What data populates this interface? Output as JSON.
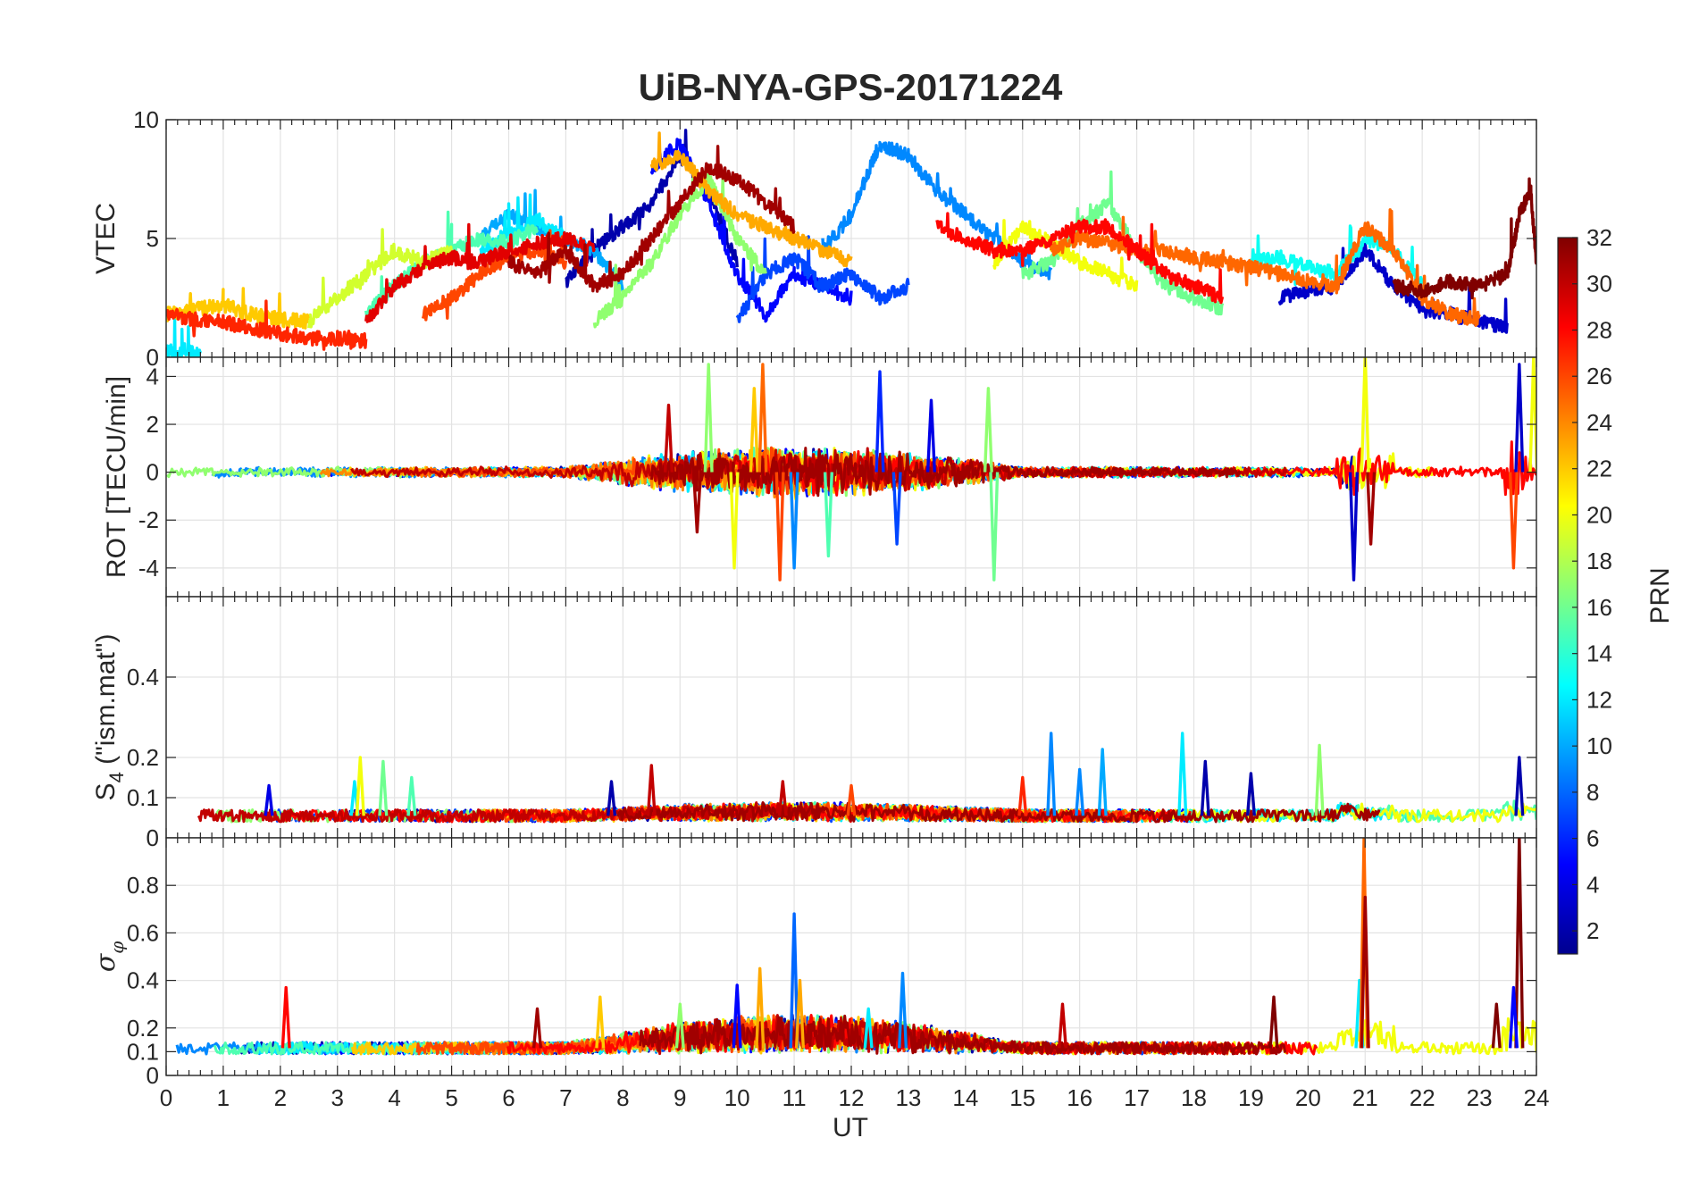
{
  "chart_data": {
    "type": "line",
    "title": "UiB-NYA-GPS-20171224",
    "xlabel": "UT",
    "xlim": [
      0,
      24
    ],
    "xticks": [
      "0",
      "1",
      "2",
      "3",
      "4",
      "5",
      "6",
      "7",
      "8",
      "9",
      "10",
      "11",
      "12",
      "13",
      "14",
      "15",
      "16",
      "17",
      "18",
      "19",
      "20",
      "21",
      "22",
      "23",
      "24"
    ],
    "grid": true,
    "colorbar": {
      "label": "PRN",
      "range": [
        1,
        32
      ],
      "ticks": [
        "2",
        "4",
        "6",
        "8",
        "10",
        "12",
        "14",
        "16",
        "18",
        "20",
        "22",
        "24",
        "26",
        "28",
        "30",
        "32"
      ],
      "colormap": "jet",
      "stops": [
        "#00008f",
        "#0000ff",
        "#0080ff",
        "#00ffff",
        "#80ff80",
        "#ffff00",
        "#ff8000",
        "#ff0000",
        "#800000"
      ]
    },
    "panels": [
      {
        "id": "vtec",
        "ylabel": "VTEC",
        "ylim": [
          0,
          10
        ],
        "yticks": [
          "0",
          "5",
          "10"
        ],
        "series": [
          {
            "prn": 2,
            "x": [
              7.0,
              7.5,
              8.0,
              8.5,
              9.0,
              9.5,
              10.0
            ],
            "y": [
              3.2,
              4.5,
              5.5,
              6.5,
              8.5,
              7.0,
              4.0
            ]
          },
          {
            "prn": 5,
            "x": [
              8.5,
              9.0,
              9.5,
              10.0,
              10.5,
              11.0,
              11.5,
              12.0
            ],
            "y": [
              8.0,
              9.0,
              6.5,
              3.5,
              1.8,
              3.5,
              3.0,
              2.5
            ]
          },
          {
            "prn": 7,
            "x": [
              10.0,
              10.5,
              11.0,
              11.5,
              12.0,
              12.5,
              13.0
            ],
            "y": [
              1.5,
              3.5,
              4.2,
              3.0,
              3.5,
              2.5,
              3.0
            ]
          },
          {
            "prn": 3,
            "x": [
              19.5,
              20.0,
              20.5,
              21.0,
              21.5,
              22.0,
              22.5,
              23.0,
              23.5
            ],
            "y": [
              2.5,
              2.8,
              3.0,
              4.5,
              3.0,
              2.0,
              1.8,
              1.5,
              1.2
            ]
          },
          {
            "prn": 9,
            "x": [
              11.5,
              12.0,
              12.5,
              13.0,
              13.5,
              14.0,
              14.5,
              15.0,
              15.5
            ],
            "y": [
              4.5,
              6.0,
              9.0,
              8.5,
              7.0,
              6.0,
              5.0,
              4.0,
              3.5
            ]
          },
          {
            "prn": 10,
            "x": [
              5.5,
              6.0,
              6.5,
              7.0,
              7.5,
              8.0
            ],
            "y": [
              5.0,
              6.0,
              5.5,
              5.0,
              4.5,
              3.0
            ]
          },
          {
            "prn": 12,
            "x": [
              0.0,
              0.3,
              0.6,
              5.5,
              6.0,
              6.5,
              7.0
            ],
            "y": [
              0.2,
              0.3,
              0.2,
              4.5,
              5.2,
              5.8,
              5.0
            ]
          },
          {
            "prn": 13,
            "x": [
              19.0,
              19.5,
              20.0,
              20.5,
              21.0,
              21.5,
              22.0
            ],
            "y": [
              4.0,
              4.2,
              3.8,
              3.5,
              5.0,
              4.5,
              3.0
            ]
          },
          {
            "prn": 15,
            "x": [
              3.5,
              4.0,
              4.5,
              5.0,
              5.5,
              6.0,
              6.5
            ],
            "y": [
              1.8,
              3.0,
              4.0,
              4.5,
              5.0,
              4.8,
              5.5
            ]
          },
          {
            "prn": 16,
            "x": [
              15.0,
              15.5,
              16.0,
              16.5,
              17.0,
              17.5,
              18.0,
              18.5
            ],
            "y": [
              3.5,
              4.0,
              5.5,
              6.5,
              4.5,
              3.0,
              2.5,
              2.0
            ]
          },
          {
            "prn": 17,
            "x": [
              7.5,
              8.0,
              8.5,
              9.0,
              9.5,
              10.0,
              10.5
            ],
            "y": [
              1.5,
              2.5,
              4.0,
              6.0,
              7.5,
              5.0,
              3.5
            ]
          },
          {
            "prn": 19,
            "x": [
              2.5,
              3.0,
              3.5,
              4.0,
              4.5,
              5.0
            ],
            "y": [
              1.5,
              2.5,
              3.5,
              4.5,
              4.0,
              4.5
            ]
          },
          {
            "prn": 20,
            "x": [
              14.5,
              15.0,
              15.5,
              16.0,
              16.5,
              17.0
            ],
            "y": [
              4.0,
              5.5,
              4.8,
              4.0,
              3.5,
              3.0
            ]
          },
          {
            "prn": 22,
            "x": [
              0.0,
              0.5,
              1.0,
              1.5,
              2.0,
              2.5
            ],
            "y": [
              1.8,
              2.0,
              2.2,
              1.8,
              1.6,
              1.5
            ]
          },
          {
            "prn": 23,
            "x": [
              8.5,
              9.0,
              9.5,
              10.0,
              10.5,
              11.0,
              11.5,
              12.0
            ],
            "y": [
              8.0,
              8.5,
              7.0,
              6.0,
              5.5,
              5.0,
              4.5,
              4.0
            ]
          },
          {
            "prn": 25,
            "x": [
              15.5,
              16.0,
              16.5,
              17.0,
              17.5,
              18.0,
              18.5,
              19.0,
              19.5,
              20.0,
              20.5,
              21.0,
              21.5,
              22.0,
              22.5,
              23.0
            ],
            "y": [
              4.5,
              5.0,
              4.8,
              4.5,
              4.5,
              4.2,
              4.0,
              3.8,
              3.5,
              3.2,
              3.0,
              5.5,
              4.5,
              2.5,
              1.8,
              1.6
            ]
          },
          {
            "prn": 26,
            "x": [
              4.5,
              5.0,
              5.5,
              6.0,
              6.5,
              7.0
            ],
            "y": [
              1.8,
              2.5,
              3.5,
              4.2,
              4.5,
              4.0
            ]
          },
          {
            "prn": 27,
            "x": [
              0.0,
              0.5,
              1.0,
              1.5,
              2.0,
              2.5,
              3.0,
              3.5
            ],
            "y": [
              1.8,
              1.6,
              1.5,
              1.2,
              1.0,
              0.8,
              0.8,
              0.7
            ]
          },
          {
            "prn": 28,
            "x": [
              13.5,
              14.0,
              14.5,
              15.0,
              15.5,
              16.0,
              16.5,
              17.0,
              17.5,
              18.0,
              18.5
            ],
            "y": [
              5.5,
              5.0,
              4.5,
              4.5,
              5.0,
              5.5,
              5.5,
              4.5,
              3.5,
              3.0,
              2.5
            ]
          },
          {
            "prn": 29,
            "x": [
              3.5,
              4.0,
              4.5,
              5.0,
              5.5,
              6.0,
              6.5,
              7.0,
              7.5
            ],
            "y": [
              1.5,
              3.0,
              3.8,
              4.2,
              4.0,
              4.5,
              4.8,
              5.0,
              4.5
            ]
          },
          {
            "prn": 31,
            "x": [
              6.0,
              6.5,
              7.0,
              7.5,
              8.0,
              8.5,
              9.0,
              9.5,
              10.0,
              10.5,
              11.0
            ],
            "y": [
              4.0,
              3.5,
              4.5,
              3.0,
              3.5,
              5.0,
              6.5,
              8.0,
              7.5,
              6.5,
              5.5
            ]
          },
          {
            "prn": 32,
            "x": [
              21.5,
              22.0,
              22.5,
              23.0,
              23.5,
              23.7,
              23.9,
              24.0
            ],
            "y": [
              3.0,
              2.8,
              3.2,
              3.0,
              3.5,
              6.0,
              7.0,
              4.0
            ]
          }
        ]
      },
      {
        "id": "rot",
        "ylabel": "ROT [TECU/min]",
        "ylim": [
          -5.2,
          4.8
        ],
        "yticks": [
          "-4",
          "-2",
          "0",
          "2",
          "4"
        ],
        "spikes": [
          {
            "x": 8.8,
            "y": 2.8,
            "prn": 30
          },
          {
            "x": 9.3,
            "y": -2.5,
            "prn": 31
          },
          {
            "x": 9.5,
            "y": 4.5,
            "prn": 17
          },
          {
            "x": 9.95,
            "y": -4.0,
            "prn": 20
          },
          {
            "x": 10.3,
            "y": 3.5,
            "prn": 22
          },
          {
            "x": 10.45,
            "y": 4.5,
            "prn": 25
          },
          {
            "x": 10.75,
            "y": -4.5,
            "prn": 26
          },
          {
            "x": 11.0,
            "y": -4.0,
            "prn": 9
          },
          {
            "x": 11.6,
            "y": -3.5,
            "prn": 15
          },
          {
            "x": 12.5,
            "y": 4.2,
            "prn": 6
          },
          {
            "x": 12.8,
            "y": -3.0,
            "prn": 7
          },
          {
            "x": 13.4,
            "y": 3.0,
            "prn": 4
          },
          {
            "x": 14.5,
            "y": -4.5,
            "prn": 16
          },
          {
            "x": 14.4,
            "y": 3.5,
            "prn": 17
          },
          {
            "x": 20.8,
            "y": -4.5,
            "prn": 3
          },
          {
            "x": 21.0,
            "y": 5.0,
            "prn": 20
          },
          {
            "x": 21.1,
            "y": -3.0,
            "prn": 31
          },
          {
            "x": 23.7,
            "y": 4.5,
            "prn": 3
          },
          {
            "x": 23.6,
            "y": -4.0,
            "prn": 26
          },
          {
            "x": 23.95,
            "y": 4.8,
            "prn": 20
          }
        ]
      },
      {
        "id": "s4",
        "ylabel": "S_4 (\"ism.mat\")",
        "ylim": [
          0,
          0.6
        ],
        "yticks": [
          "0",
          "0.1",
          "0.2",
          "0.4"
        ],
        "baseline": [
          0.04,
          0.07
        ],
        "spikes": [
          {
            "x": 1.8,
            "y": 0.13,
            "prn": 4
          },
          {
            "x": 3.3,
            "y": 0.14,
            "prn": 12
          },
          {
            "x": 3.4,
            "y": 0.2,
            "prn": 20
          },
          {
            "x": 3.8,
            "y": 0.19,
            "prn": 16
          },
          {
            "x": 4.3,
            "y": 0.15,
            "prn": 15
          },
          {
            "x": 7.8,
            "y": 0.14,
            "prn": 2
          },
          {
            "x": 8.5,
            "y": 0.18,
            "prn": 30
          },
          {
            "x": 10.8,
            "y": 0.14,
            "prn": 30
          },
          {
            "x": 12.0,
            "y": 0.13,
            "prn": 26
          },
          {
            "x": 15.0,
            "y": 0.15,
            "prn": 27
          },
          {
            "x": 15.5,
            "y": 0.26,
            "prn": 9
          },
          {
            "x": 16.0,
            "y": 0.17,
            "prn": 9
          },
          {
            "x": 16.4,
            "y": 0.22,
            "prn": 10
          },
          {
            "x": 17.8,
            "y": 0.26,
            "prn": 12
          },
          {
            "x": 18.2,
            "y": 0.19,
            "prn": 2
          },
          {
            "x": 19.0,
            "y": 0.16,
            "prn": 2
          },
          {
            "x": 20.2,
            "y": 0.23,
            "prn": 17
          },
          {
            "x": 23.7,
            "y": 0.2,
            "prn": 2
          }
        ]
      },
      {
        "id": "sigma_phi",
        "ylabel": "σ_φ",
        "ylim": [
          0,
          1
        ],
        "yticks": [
          "0",
          "0.1",
          "0.2",
          "0.4",
          "0.6",
          "0.8"
        ],
        "baseline": [
          0.09,
          0.14
        ],
        "spikes": [
          {
            "x": 2.1,
            "y": 0.37,
            "prn": 28
          },
          {
            "x": 6.5,
            "y": 0.28,
            "prn": 31
          },
          {
            "x": 7.6,
            "y": 0.33,
            "prn": 22
          },
          {
            "x": 9.0,
            "y": 0.3,
            "prn": 17
          },
          {
            "x": 10.0,
            "y": 0.38,
            "prn": 5
          },
          {
            "x": 10.4,
            "y": 0.45,
            "prn": 23
          },
          {
            "x": 11.0,
            "y": 0.68,
            "prn": 8
          },
          {
            "x": 11.1,
            "y": 0.4,
            "prn": 23
          },
          {
            "x": 12.3,
            "y": 0.28,
            "prn": 12
          },
          {
            "x": 12.9,
            "y": 0.43,
            "prn": 9
          },
          {
            "x": 15.7,
            "y": 0.3,
            "prn": 30
          },
          {
            "x": 19.4,
            "y": 0.33,
            "prn": 32
          },
          {
            "x": 20.9,
            "y": 0.4,
            "prn": 12
          },
          {
            "x": 20.98,
            "y": 1.0,
            "prn": 25
          },
          {
            "x": 21.0,
            "y": 0.75,
            "prn": 31
          },
          {
            "x": 23.3,
            "y": 0.3,
            "prn": 32
          },
          {
            "x": 23.7,
            "y": 1.0,
            "prn": 32
          },
          {
            "x": 23.6,
            "y": 0.37,
            "prn": 5
          }
        ]
      }
    ]
  }
}
